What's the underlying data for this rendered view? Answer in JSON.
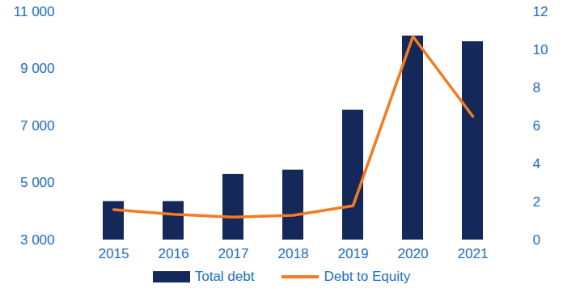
{
  "chart_data": {
    "type": "bar",
    "categories": [
      "2015",
      "2016",
      "2017",
      "2018",
      "2019",
      "2020",
      "2021"
    ],
    "series": [
      {
        "name": "Total debt",
        "type": "bar",
        "color": "#14295a",
        "values": [
          4350,
          4350,
          5300,
          5450,
          7550,
          10150,
          9950
        ]
      },
      {
        "name": "Debt to Equity",
        "type": "line",
        "color": "#f47b20",
        "axis": "y2",
        "values": [
          1.6,
          1.35,
          1.2,
          1.3,
          1.8,
          10.7,
          6.5
        ]
      }
    ],
    "ylim": [
      3000,
      11000
    ],
    "yticks": [
      {
        "value": 3000,
        "label": "3 000"
      },
      {
        "value": 5000,
        "label": "5 000"
      },
      {
        "value": 7000,
        "label": "7 000"
      },
      {
        "value": 9000,
        "label": "9 000"
      },
      {
        "value": 11000,
        "label": "11 000"
      }
    ],
    "y2lim": [
      0,
      12
    ],
    "y2ticks": [
      0,
      2,
      4,
      6,
      8,
      10,
      12
    ],
    "legend": "bottom"
  }
}
